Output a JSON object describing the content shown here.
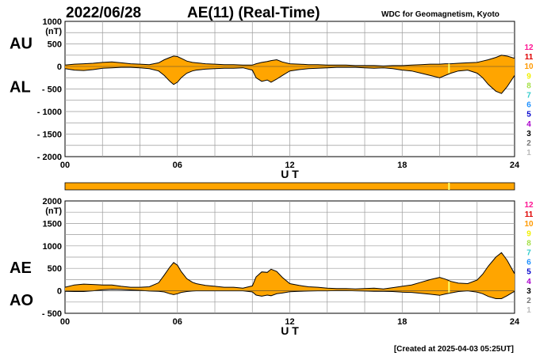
{
  "header": {
    "date": "2022/06/28",
    "title": "AE(11) (Real-Time)",
    "source": "WDC for Geomagnetism, Kyoto"
  },
  "footer": {
    "created": "[Created at 2025-04-03 05:25UT]"
  },
  "station_count_scale": {
    "labels": [
      "12",
      "11",
      "10",
      "9",
      "8",
      "7",
      "6",
      "5",
      "4",
      "3",
      "2",
      "1"
    ],
    "colors": [
      "#ff1493",
      "#e00000",
      "#ff9900",
      "#f0f000",
      "#a6e04a",
      "#33cccc",
      "#1e90ff",
      "#0000cc",
      "#aa00cc",
      "#000000",
      "#777777",
      "#bbbbbb"
    ]
  },
  "colors": {
    "fill": "#ffa500",
    "line": "#000000",
    "grid": "#9a9a9a",
    "marker": "#ffff66"
  },
  "marker_hour": 20.5,
  "chart_data": [
    {
      "type": "area",
      "id": "au_al",
      "ylabel_upper": "AU",
      "ylabel_lower": "AL",
      "unit": "(nT)",
      "xlabel": "U T",
      "xlim": [
        0,
        24
      ],
      "ylim": [
        -2000,
        1000
      ],
      "x_ticks": [
        "00",
        "06",
        "12",
        "18",
        "24"
      ],
      "y_ticks": [
        "1000",
        "500",
        "0",
        "- 500",
        "- 1000",
        "- 1500",
        "- 2000"
      ],
      "grid": true,
      "series": [
        {
          "name": "AU",
          "x": [
            0,
            0.5,
            1,
            1.5,
            2,
            2.5,
            3,
            3.5,
            4,
            4.5,
            5,
            5.3,
            5.6,
            5.8,
            6,
            6.2,
            6.5,
            6.8,
            7,
            7.5,
            8,
            8.5,
            9,
            9.5,
            10,
            10.2,
            10.5,
            10.8,
            11,
            11.3,
            11.6,
            12,
            12.5,
            13,
            13.5,
            14,
            14.5,
            15,
            15.5,
            16,
            16.5,
            17,
            17.5,
            18,
            18.5,
            19,
            19.5,
            20,
            20.3,
            20.6,
            21,
            21.5,
            22,
            22.3,
            22.6,
            23,
            23.3,
            23.6,
            24
          ],
          "values": [
            30,
            50,
            60,
            70,
            90,
            100,
            80,
            60,
            50,
            40,
            80,
            150,
            200,
            230,
            220,
            180,
            120,
            90,
            80,
            60,
            50,
            40,
            40,
            30,
            30,
            60,
            90,
            110,
            130,
            150,
            100,
            60,
            50,
            40,
            40,
            30,
            30,
            30,
            20,
            20,
            20,
            10,
            20,
            20,
            30,
            40,
            50,
            50,
            60,
            60,
            70,
            80,
            90,
            120,
            150,
            200,
            250,
            230,
            180
          ]
        },
        {
          "name": "AL",
          "x": [
            0,
            0.5,
            1,
            1.5,
            2,
            2.5,
            3,
            3.5,
            4,
            4.5,
            5,
            5.3,
            5.6,
            5.8,
            6,
            6.2,
            6.5,
            6.8,
            7,
            7.5,
            8,
            8.5,
            9,
            9.5,
            10,
            10.2,
            10.5,
            10.8,
            11,
            11.3,
            11.6,
            12,
            12.5,
            13,
            13.5,
            14,
            14.5,
            15,
            15.5,
            16,
            16.5,
            17,
            17.5,
            18,
            18.5,
            19,
            19.5,
            20,
            20.3,
            20.6,
            21,
            21.5,
            22,
            22.3,
            22.6,
            23,
            23.3,
            23.6,
            24
          ],
          "values": [
            -50,
            -80,
            -90,
            -70,
            -40,
            -30,
            -20,
            -20,
            -30,
            -50,
            -100,
            -200,
            -330,
            -400,
            -350,
            -250,
            -150,
            -100,
            -80,
            -60,
            -50,
            -40,
            -40,
            -30,
            -80,
            -250,
            -330,
            -300,
            -350,
            -280,
            -200,
            -100,
            -70,
            -50,
            -40,
            -30,
            -20,
            -20,
            -20,
            -30,
            -40,
            -30,
            -50,
            -80,
            -100,
            -150,
            -200,
            -250,
            -200,
            -150,
            -100,
            -80,
            -150,
            -250,
            -400,
            -550,
            -600,
            -450,
            -200
          ]
        }
      ]
    },
    {
      "type": "area",
      "id": "ae_ao",
      "ylabel_upper": "AE",
      "ylabel_lower": "AO",
      "unit": "(nT)",
      "xlabel": "U T",
      "xlim": [
        0,
        24
      ],
      "ylim": [
        -500,
        2000
      ],
      "x_ticks": [
        "00",
        "06",
        "12",
        "18",
        "24"
      ],
      "y_ticks": [
        "2000",
        "1500",
        "1000",
        "500",
        "0",
        "- 500"
      ],
      "grid": true,
      "series": [
        {
          "name": "AE",
          "x": [
            0,
            0.5,
            1,
            1.5,
            2,
            2.5,
            3,
            3.5,
            4,
            4.5,
            5,
            5.3,
            5.6,
            5.8,
            6,
            6.2,
            6.5,
            6.8,
            7,
            7.5,
            8,
            8.5,
            9,
            9.5,
            10,
            10.2,
            10.5,
            10.8,
            11,
            11.3,
            11.6,
            12,
            12.5,
            13,
            13.5,
            14,
            14.5,
            15,
            15.5,
            16,
            16.5,
            17,
            17.5,
            18,
            18.5,
            19,
            19.5,
            20,
            20.3,
            20.6,
            21,
            21.5,
            22,
            22.3,
            22.6,
            23,
            23.3,
            23.6,
            24
          ],
          "values": [
            80,
            130,
            150,
            140,
            130,
            130,
            100,
            80,
            80,
            90,
            180,
            350,
            530,
            630,
            570,
            430,
            270,
            190,
            160,
            120,
            100,
            80,
            80,
            60,
            110,
            310,
            420,
            410,
            480,
            430,
            300,
            160,
            120,
            90,
            80,
            60,
            50,
            50,
            40,
            50,
            60,
            40,
            70,
            100,
            130,
            190,
            250,
            300,
            260,
            210,
            170,
            160,
            240,
            370,
            550,
            750,
            850,
            680,
            380
          ]
        },
        {
          "name": "AO",
          "x": [
            0,
            0.5,
            1,
            1.5,
            2,
            2.5,
            3,
            3.5,
            4,
            4.5,
            5,
            5.3,
            5.6,
            5.8,
            6,
            6.2,
            6.5,
            6.8,
            7,
            7.5,
            8,
            8.5,
            9,
            9.5,
            10,
            10.2,
            10.5,
            10.8,
            11,
            11.3,
            11.6,
            12,
            12.5,
            13,
            13.5,
            14,
            14.5,
            15,
            15.5,
            16,
            16.5,
            17,
            17.5,
            18,
            18.5,
            19,
            19.5,
            20,
            20.3,
            20.6,
            21,
            21.5,
            22,
            22.3,
            22.6,
            23,
            23.3,
            23.6,
            24
          ],
          "values": [
            -10,
            -15,
            -15,
            0,
            25,
            35,
            30,
            20,
            10,
            -5,
            -10,
            -25,
            -65,
            -85,
            -65,
            -35,
            -15,
            -5,
            0,
            0,
            0,
            0,
            0,
            0,
            -25,
            -95,
            -120,
            -95,
            -110,
            -65,
            -50,
            -20,
            -10,
            -5,
            0,
            0,
            5,
            5,
            0,
            -5,
            -10,
            -10,
            -15,
            -30,
            -35,
            -55,
            -75,
            -100,
            -70,
            -45,
            -15,
            0,
            -30,
            -65,
            -125,
            -175,
            -175,
            -110,
            -10
          ]
        }
      ]
    }
  ]
}
